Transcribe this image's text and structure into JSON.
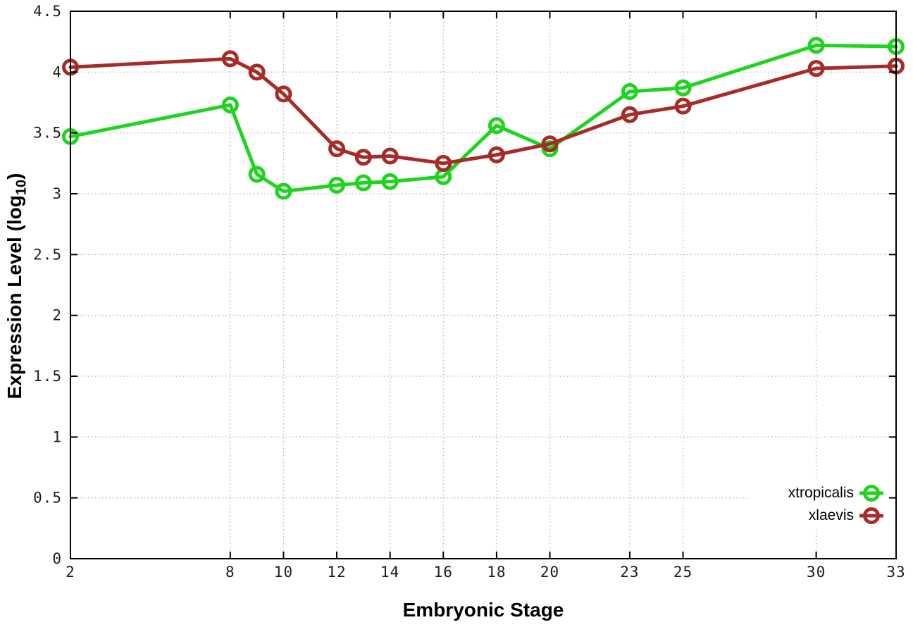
{
  "figure": {
    "background": "#ffffff"
  },
  "chart_data": {
    "type": "line",
    "title": "",
    "xlabel": "Embryonic Stage",
    "ylabel": "Expression Level (log10)",
    "ylabel_parts": {
      "pre": "Expression Level (log",
      "sub": "10",
      "post": ")"
    },
    "x": [
      2,
      8,
      9,
      10,
      12,
      13,
      14,
      16,
      18,
      20,
      23,
      25,
      30,
      33
    ],
    "series": [
      {
        "name": "xtropicalis",
        "color": "#1fd41f",
        "values": [
          3.47,
          3.73,
          3.16,
          3.02,
          3.07,
          3.09,
          3.1,
          3.14,
          3.56,
          3.37,
          3.84,
          3.87,
          4.22,
          4.21
        ]
      },
      {
        "name": "xlaevis",
        "color": "#a52c28",
        "values": [
          4.04,
          4.11,
          4.0,
          3.82,
          3.37,
          3.3,
          3.31,
          3.25,
          3.32,
          3.41,
          3.65,
          3.72,
          4.03,
          4.05
        ]
      }
    ],
    "xlim": [
      2,
      33
    ],
    "ylim": [
      0,
      4.5
    ],
    "xticks": [
      2,
      8,
      10,
      12,
      14,
      16,
      18,
      20,
      23,
      25,
      30,
      33
    ],
    "yticks": [
      {
        "v": 0,
        "label": "0"
      },
      {
        "v": 0.5,
        "label": "0.5"
      },
      {
        "v": 1,
        "label": "1"
      },
      {
        "v": 1.5,
        "label": "1.5"
      },
      {
        "v": 2,
        "label": "2"
      },
      {
        "v": 2.5,
        "label": "2.5"
      },
      {
        "v": 3,
        "label": "3"
      },
      {
        "v": 3.5,
        "label": "3.5"
      },
      {
        "v": 4,
        "label": "4"
      },
      {
        "v": 4.5,
        "label": "4.5"
      }
    ],
    "grid": true,
    "grid_style": "dotted",
    "legend_position": "inside-bottom-right",
    "marker": "open-circle",
    "colors": {
      "grid": "#b5b5b5",
      "axis": "#000000",
      "tick_text": "#1c1c1c"
    }
  }
}
